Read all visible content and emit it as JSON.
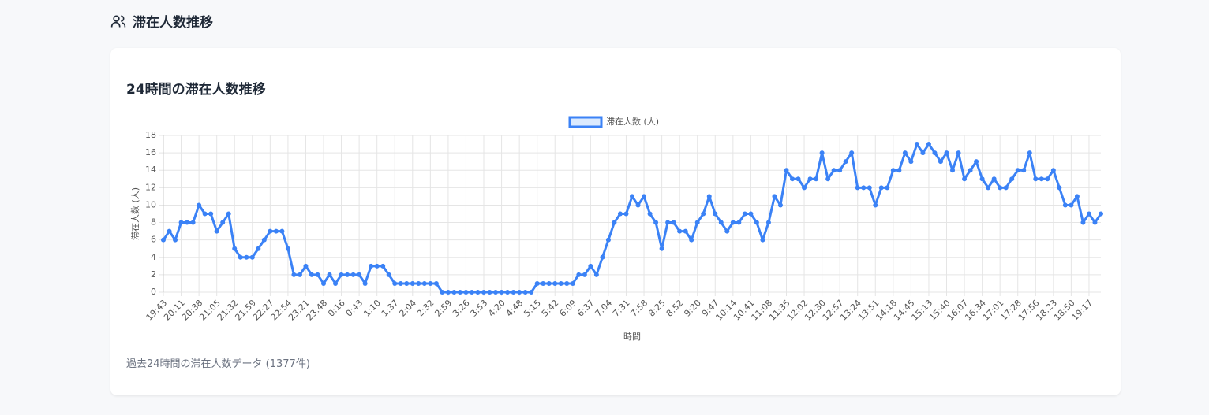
{
  "header": {
    "title": "滞在人数推移"
  },
  "card": {
    "title": "24時間の滞在人数推移",
    "footer": "過去24時間の滞在人数データ (1377件)"
  },
  "chart_data": {
    "type": "line",
    "x_label": "時間",
    "y_label": "滞在人数 (人)",
    "categories": [
      "19:43",
      null,
      null,
      "20:11",
      null,
      null,
      "20:38",
      null,
      null,
      "21:05",
      null,
      null,
      "21:32",
      null,
      null,
      "21:59",
      null,
      null,
      "22:27",
      null,
      null,
      "22:54",
      null,
      null,
      "23:21",
      null,
      null,
      "23:48",
      null,
      null,
      "0:16",
      null,
      null,
      "0:43",
      null,
      null,
      "1:10",
      null,
      null,
      "1:37",
      null,
      null,
      "2:04",
      null,
      null,
      "2:32",
      null,
      null,
      "2:59",
      null,
      null,
      "3:26",
      null,
      null,
      "3:53",
      null,
      null,
      "4:20",
      null,
      null,
      "4:48",
      null,
      null,
      "5:15",
      null,
      null,
      "5:42",
      null,
      null,
      "6:09",
      null,
      null,
      "6:37",
      null,
      null,
      "7:04",
      null,
      null,
      "7:31",
      null,
      null,
      "7:58",
      null,
      null,
      "8:25",
      null,
      null,
      "8:52",
      null,
      null,
      "9:20",
      null,
      null,
      "9:47",
      null,
      null,
      "10:14",
      null,
      null,
      "10:41",
      null,
      null,
      "11:08",
      null,
      null,
      "11:35",
      null,
      null,
      "12:02",
      null,
      null,
      "12:30",
      null,
      null,
      "12:57",
      null,
      null,
      "13:24",
      null,
      null,
      "13:51",
      null,
      null,
      "14:18",
      null,
      null,
      "14:45",
      null,
      null,
      "15:13",
      null,
      null,
      "15:40",
      null,
      null,
      "16:07",
      null,
      null,
      "16:34",
      null,
      null,
      "17:01",
      null,
      null,
      "17:28",
      null,
      null,
      "17:56",
      null,
      null,
      "18:23",
      null,
      null,
      "18:50",
      null,
      null,
      "19:17",
      null,
      null
    ],
    "series": [
      {
        "name": "滞在人数 (人)",
        "color": "#3b82f6",
        "fill": "#dbeafe",
        "values": [
          6,
          7,
          6,
          8,
          8,
          8,
          10,
          9,
          9,
          7,
          8,
          9,
          5,
          4,
          4,
          4,
          5,
          6,
          7,
          7,
          7,
          5,
          2,
          2,
          3,
          2,
          2,
          1,
          2,
          1,
          2,
          2,
          2,
          2,
          1,
          3,
          3,
          3,
          2,
          1,
          1,
          1,
          1,
          1,
          1,
          1,
          1,
          0,
          0,
          0,
          0,
          0,
          0,
          0,
          0,
          0,
          0,
          0,
          0,
          0,
          0,
          0,
          0,
          1,
          1,
          1,
          1,
          1,
          1,
          1,
          2,
          2,
          3,
          2,
          4,
          6,
          8,
          9,
          9,
          11,
          10,
          11,
          9,
          8,
          5,
          8,
          8,
          7,
          7,
          6,
          8,
          9,
          11,
          9,
          8,
          7,
          8,
          8,
          9,
          9,
          8,
          6,
          8,
          11,
          10,
          14,
          13,
          13,
          12,
          13,
          13,
          16,
          13,
          14,
          14,
          15,
          16,
          12,
          12,
          12,
          10,
          12,
          12,
          14,
          14,
          16,
          15,
          17,
          16,
          17,
          16,
          15,
          16,
          14,
          16,
          13,
          14,
          15,
          13,
          12,
          13,
          12,
          12,
          13,
          14,
          14,
          16,
          13,
          13,
          13,
          14,
          12,
          10,
          10,
          11,
          8,
          9,
          8,
          9
        ]
      }
    ],
    "ylim": [
      0,
      18
    ],
    "yticks": [
      0,
      2,
      4,
      6,
      8,
      10,
      12,
      14,
      16,
      18
    ],
    "grid": true
  }
}
